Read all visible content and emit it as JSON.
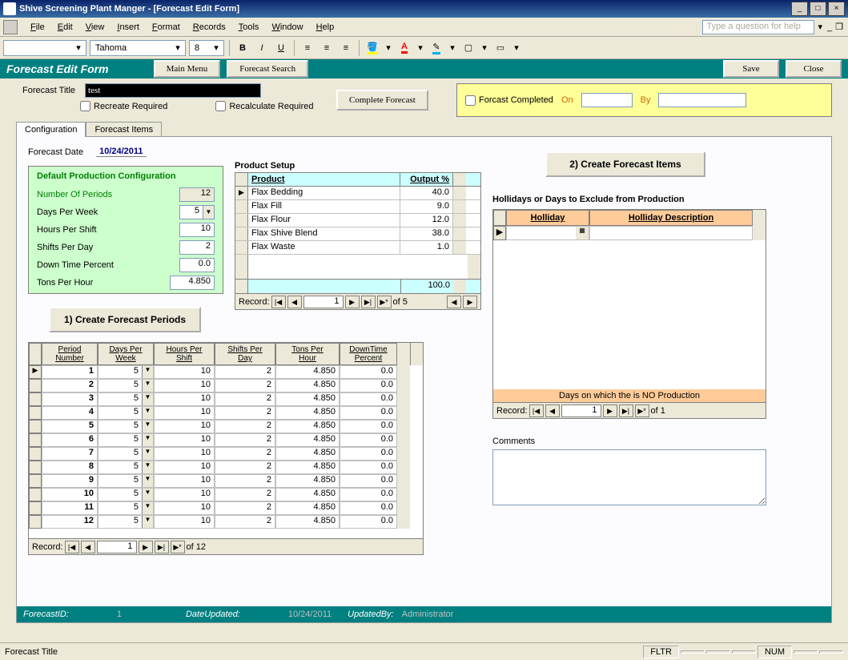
{
  "window": {
    "title": "Shive Screening Plant Manger - [Forecast Edit Form]"
  },
  "menu": {
    "file": "File",
    "edit": "Edit",
    "view": "View",
    "insert": "Insert",
    "format": "Format",
    "records": "Records",
    "tools": "Tools",
    "window": "Window",
    "help": "Help",
    "helpbox": "Type a question for help"
  },
  "toolbar": {
    "font": "Tahoma",
    "size": "8"
  },
  "header": {
    "title": "Forecast Edit Form",
    "mainmenu": "Main Menu",
    "fsearch": "Forecast Search",
    "save": "Save",
    "close": "Close"
  },
  "form": {
    "title_label": "Forecast Title",
    "title_value": "test",
    "recreate": "Recreate Required",
    "recalc": "Recalculate Required",
    "complete_btn": "Complete Forecast",
    "completed_chk": "Forcast Completed",
    "on": "On",
    "by": "By",
    "tab1": "Configuration",
    "tab2": "Forecast Items",
    "date_label": "Forecast Date",
    "date_value": "10/24/2011"
  },
  "defaults": {
    "title": "Default Production Configuration",
    "periods_lbl": "Number Of Periods",
    "periods": "12",
    "dpw_lbl": "Days Per Week",
    "dpw": "5",
    "hps_lbl": "Hours Per Shift",
    "hps": "10",
    "spd_lbl": "Shifts Per Day",
    "spd": "2",
    "dtp_lbl": "Down Time Percent",
    "dtp": "0.0",
    "tph_lbl": "Tons Per Hour",
    "tph": "4.850"
  },
  "products": {
    "label": "Product Setup",
    "h1": "Product",
    "h2": "Output %",
    "rows": [
      {
        "name": "Flax Bedding",
        "pct": "40.0"
      },
      {
        "name": "Flax Fill",
        "pct": "9.0"
      },
      {
        "name": "Flax Flour",
        "pct": "12.0"
      },
      {
        "name": "Flax Shive Blend",
        "pct": "38.0"
      },
      {
        "name": "Flax Waste",
        "pct": "1.0"
      }
    ],
    "total": "100.0",
    "rec": "Record:",
    "recnum": "1",
    "of": "of  5"
  },
  "action1": "1) Create Forecast Periods",
  "action2": "2) Create Forecast Items",
  "periods": {
    "h1a": "Period",
    "h1b": "Number",
    "h2a": "Days Per",
    "h2b": "Week",
    "h3a": "Hours Per",
    "h3b": "Shift",
    "h4a": "Shifts Per",
    "h4b": "Day",
    "h5a": "Tons Per",
    "h5b": "Hour",
    "h6a": "DownTime",
    "h6b": "Percent",
    "rows": [
      {
        "n": "1",
        "dpw": "5",
        "hps": "10",
        "spd": "2",
        "tph": "4.850",
        "dt": "0.0"
      },
      {
        "n": "2",
        "dpw": "5",
        "hps": "10",
        "spd": "2",
        "tph": "4.850",
        "dt": "0.0"
      },
      {
        "n": "3",
        "dpw": "5",
        "hps": "10",
        "spd": "2",
        "tph": "4.850",
        "dt": "0.0"
      },
      {
        "n": "4",
        "dpw": "5",
        "hps": "10",
        "spd": "2",
        "tph": "4.850",
        "dt": "0.0"
      },
      {
        "n": "5",
        "dpw": "5",
        "hps": "10",
        "spd": "2",
        "tph": "4.850",
        "dt": "0.0"
      },
      {
        "n": "6",
        "dpw": "5",
        "hps": "10",
        "spd": "2",
        "tph": "4.850",
        "dt": "0.0"
      },
      {
        "n": "7",
        "dpw": "5",
        "hps": "10",
        "spd": "2",
        "tph": "4.850",
        "dt": "0.0"
      },
      {
        "n": "8",
        "dpw": "5",
        "hps": "10",
        "spd": "2",
        "tph": "4.850",
        "dt": "0.0"
      },
      {
        "n": "9",
        "dpw": "5",
        "hps": "10",
        "spd": "2",
        "tph": "4.850",
        "dt": "0.0"
      },
      {
        "n": "10",
        "dpw": "5",
        "hps": "10",
        "spd": "2",
        "tph": "4.850",
        "dt": "0.0"
      },
      {
        "n": "11",
        "dpw": "5",
        "hps": "10",
        "spd": "2",
        "tph": "4.850",
        "dt": "0.0"
      },
      {
        "n": "12",
        "dpw": "5",
        "hps": "10",
        "spd": "2",
        "tph": "4.850",
        "dt": "0.0"
      }
    ],
    "rec": "Record:",
    "recnum": "1",
    "of": "of  12"
  },
  "holidays": {
    "label": "Hollidays or Days to Exclude from Production",
    "h1": "Holliday",
    "h2": "Holliday Description",
    "note": "Days on which the is NO Production",
    "rec": "Record:",
    "recnum": "1",
    "of": "of  1"
  },
  "comments_lbl": "Comments",
  "statusteal": {
    "fid": "ForecastID:",
    "fid_v": "1",
    "du": "DateUpdated:",
    "du_v": "10/24/2011",
    "ub": "UpdatedBy:",
    "ub_v": "Administrator"
  },
  "statusbar": {
    "left": "Forecast Title",
    "fltr": "FLTR",
    "num": "NUM"
  },
  "colors": {
    "teal": "#008080",
    "green": "#ccffcc",
    "cyan": "#ccffff",
    "yellow": "#ffff99",
    "orange": "#ffcc99"
  }
}
